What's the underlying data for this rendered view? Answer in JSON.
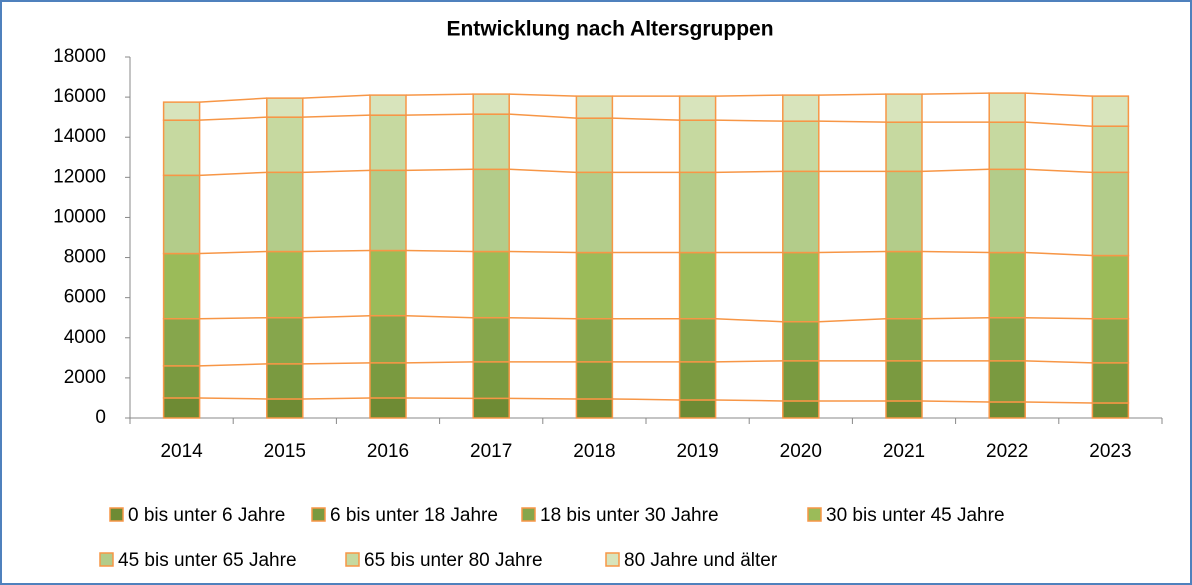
{
  "chart_data": {
    "type": "stacked_bar",
    "title": "Entwicklung nach Altersgruppen",
    "categories": [
      "2014",
      "2015",
      "2016",
      "2017",
      "2018",
      "2019",
      "2020",
      "2021",
      "2022",
      "2023"
    ],
    "series": [
      {
        "name": "0 bis unter 6 Jahre",
        "color": "#6e8b34",
        "values": [
          1000,
          950,
          1000,
          980,
          950,
          900,
          850,
          850,
          800,
          750
        ]
      },
      {
        "name": "6 bis unter 18 Jahre",
        "color": "#7a9a40",
        "values": [
          1600,
          1750,
          1750,
          1820,
          1850,
          1900,
          2000,
          2000,
          2050,
          2000
        ]
      },
      {
        "name": "18 bis unter 30 Jahre",
        "color": "#86a64c",
        "values": [
          2350,
          2300,
          2350,
          2200,
          2150,
          2150,
          1950,
          2100,
          2150,
          2200
        ]
      },
      {
        "name": "30 bis unter 45 Jahre",
        "color": "#9bbb59",
        "values": [
          3250,
          3300,
          3250,
          3300,
          3300,
          3300,
          3450,
          3350,
          3250,
          3150
        ]
      },
      {
        "name": "45 bis unter 65 Jahre",
        "color": "#b3cc8a",
        "values": [
          3900,
          3950,
          4000,
          4100,
          4000,
          4000,
          4050,
          4000,
          4150,
          4150
        ]
      },
      {
        "name": "65 bis unter 80 Jahre",
        "color": "#c6d9a0",
        "values": [
          2750,
          2750,
          2750,
          2750,
          2700,
          2600,
          2500,
          2450,
          2350,
          2300
        ]
      },
      {
        "name": "80 Jahre und älter",
        "color": "#d8e4bc",
        "values": [
          900,
          950,
          1000,
          1000,
          1100,
          1200,
          1300,
          1400,
          1450,
          1500
        ]
      }
    ],
    "edge_color": "#f79646",
    "ylim": [
      0,
      18000
    ],
    "yticks": [
      0,
      2000,
      4000,
      6000,
      8000,
      10000,
      12000,
      14000,
      16000,
      18000
    ]
  }
}
